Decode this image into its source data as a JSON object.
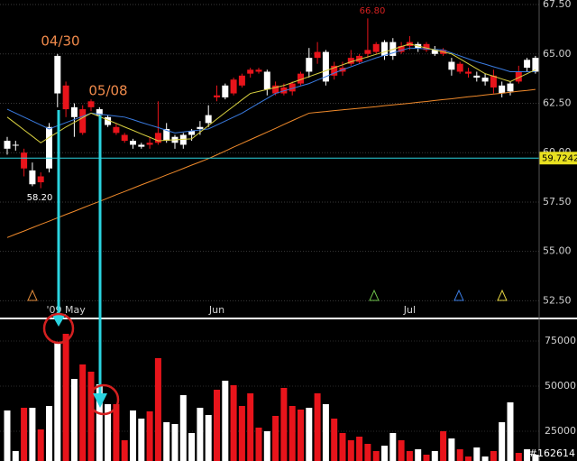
{
  "chart_data": [
    {
      "type": "candlestick",
      "categories": [
        null,
        null,
        null,
        null,
        null,
        null,
        null,
        "'09 May",
        null,
        null,
        null,
        null,
        null,
        null,
        null,
        null,
        null,
        null,
        null,
        null,
        null,
        null,
        null,
        null,
        null,
        "Jun",
        null,
        null,
        null,
        null,
        null,
        null,
        null,
        null,
        null,
        null,
        null,
        null,
        null,
        null,
        null,
        null,
        null,
        null,
        null,
        null,
        null,
        null,
        "Jul",
        null,
        null,
        null,
        null,
        null,
        null,
        null,
        null,
        null,
        null,
        null,
        null,
        null,
        null,
        null
      ],
      "open": [
        60.2,
        60.4,
        60.0,
        58.4,
        58.8,
        59.2,
        63.0,
        63.4,
        61.8,
        62.2,
        62.6,
        61.9,
        61.4,
        61.3,
        60.9,
        60.4,
        60.3,
        60.5,
        61.0,
        60.6,
        60.5,
        60.4,
        60.9,
        61.2,
        61.5,
        62.9,
        62.8,
        63.7,
        63.9,
        64.2,
        64.2,
        63.2,
        63.4,
        63.3,
        63.5,
        64.0,
        64.1,
        65.1,
        63.6,
        64.4,
        64.3,
        64.8,
        64.9,
        65.2,
        65.5,
        64.9,
        64.9,
        65.4,
        65.6,
        65.3,
        65.5,
        65.0,
        65.2,
        64.2,
        64.5,
        64.1,
        63.8,
        63.6,
        63.9,
        63.0,
        63.1,
        64.1,
        64.3,
        64.1
      ],
      "high": [
        60.8,
        60.6,
        60.2,
        59.5,
        59.0,
        61.5,
        65.0,
        63.6,
        62.5,
        62.4,
        62.7,
        62.3,
        61.9,
        61.5,
        61.0,
        60.7,
        60.5,
        60.8,
        62.6,
        61.5,
        60.9,
        61.0,
        61.2,
        61.6,
        62.4,
        63.4,
        63.5,
        63.8,
        64.0,
        64.3,
        64.3,
        64.2,
        63.6,
        63.5,
        63.6,
        64.1,
        65.3,
        65.6,
        65.2,
        64.6,
        64.6,
        65.2,
        65.0,
        66.8,
        65.6,
        65.7,
        65.8,
        65.6,
        65.9,
        65.6,
        65.6,
        65.4,
        65.3,
        64.8,
        64.6,
        64.3,
        64.1,
        64.0,
        64.2,
        63.6,
        63.6,
        64.4,
        64.8,
        64.9
      ],
      "low": [
        59.9,
        60.1,
        58.8,
        58.3,
        58.2,
        59.0,
        62.3,
        61.8,
        60.8,
        60.9,
        62.1,
        61.7,
        61.3,
        60.9,
        60.5,
        60.2,
        60.2,
        60.2,
        60.4,
        60.5,
        60.2,
        60.2,
        60.6,
        60.9,
        61.3,
        62.6,
        62.7,
        62.9,
        63.3,
        63.8,
        64.0,
        62.9,
        62.9,
        62.9,
        62.9,
        63.4,
        63.8,
        64.5,
        63.4,
        63.7,
        63.9,
        64.4,
        64.5,
        64.8,
        65.0,
        64.7,
        64.7,
        65.0,
        65.2,
        65.1,
        65.1,
        64.9,
        64.9,
        63.9,
        64.0,
        63.8,
        63.6,
        63.4,
        63.0,
        62.8,
        62.9,
        63.5,
        64.1,
        64.0
      ],
      "close": [
        60.6,
        60.4,
        59.2,
        59.1,
        58.5,
        61.3,
        64.9,
        62.2,
        62.3,
        61.0,
        62.3,
        62.2,
        61.8,
        61.0,
        60.6,
        60.6,
        60.4,
        60.4,
        60.5,
        61.2,
        60.8,
        60.9,
        61.1,
        61.3,
        61.9,
        62.8,
        63.4,
        63.0,
        63.4,
        64.0,
        64.1,
        64.1,
        63.0,
        63.0,
        63.1,
        63.5,
        64.8,
        64.8,
        65.1,
        63.9,
        64.1,
        64.5,
        64.6,
        65.0,
        65.1,
        65.6,
        65.6,
        65.1,
        65.4,
        65.5,
        65.2,
        65.2,
        65.0,
        64.6,
        64.1,
        64.0,
        63.9,
        63.8,
        63.3,
        63.4,
        63.5,
        63.6,
        64.7,
        64.8
      ],
      "up_color": "#ffffff",
      "down_color": "#e8141b",
      "series": [
        {
          "color": "#f08a2b",
          "values": [
            55.7,
            55.87,
            56.03,
            56.2,
            56.37,
            56.53,
            56.7,
            56.87,
            57.03,
            57.2,
            57.37,
            57.53,
            57.7,
            57.87,
            58.03,
            58.2,
            58.37,
            58.53,
            58.7,
            58.87,
            59.03,
            59.2,
            59.37,
            59.53,
            59.7,
            59.89,
            60.08,
            60.28,
            60.47,
            60.66,
            60.85,
            61.04,
            61.23,
            61.43,
            61.62,
            61.81,
            62.0,
            62.04,
            62.08,
            62.13,
            62.17,
            62.21,
            62.25,
            62.29,
            62.33,
            62.38,
            62.42,
            62.46,
            62.5,
            62.55,
            62.59,
            62.64,
            62.69,
            62.73,
            62.78,
            62.83,
            62.87,
            62.92,
            62.97,
            63.01,
            63.06,
            63.11,
            63.15,
            63.2
          ]
        },
        {
          "color": "#3a7be0",
          "values": [
            62.2,
            62.0,
            61.8,
            61.6,
            61.4,
            61.2,
            61.36,
            61.52,
            61.68,
            61.84,
            62.0,
            61.95,
            61.9,
            61.85,
            61.8,
            61.67,
            61.53,
            61.4,
            61.27,
            61.13,
            61.0,
            61.05,
            61.1,
            61.15,
            61.2,
            61.4,
            61.6,
            61.8,
            62.0,
            62.25,
            62.5,
            62.75,
            63.0,
            63.13,
            63.25,
            63.38,
            63.5,
            63.68,
            63.85,
            64.03,
            64.2,
            64.35,
            64.5,
            64.65,
            64.8,
            64.93,
            65.05,
            65.18,
            65.3,
            65.28,
            65.25,
            65.23,
            65.2,
            65.05,
            64.9,
            64.75,
            64.6,
            64.48,
            64.35,
            64.23,
            64.1,
            64.1,
            64.1,
            64.1
          ]
        },
        {
          "color": "#d8d040",
          "values": [
            61.8,
            61.48,
            61.15,
            60.83,
            60.5,
            60.77,
            61.03,
            61.3,
            61.53,
            61.77,
            62.0,
            61.83,
            61.65,
            61.48,
            61.3,
            61.13,
            60.95,
            60.78,
            60.6,
            60.63,
            60.65,
            60.68,
            60.7,
            61.03,
            61.37,
            61.7,
            62.03,
            62.35,
            62.68,
            63.0,
            63.1,
            63.2,
            63.3,
            63.4,
            63.55,
            63.7,
            63.85,
            64.0,
            64.15,
            64.3,
            64.45,
            64.6,
            64.73,
            64.85,
            64.98,
            65.1,
            65.23,
            65.37,
            65.5,
            65.4,
            65.3,
            65.2,
            65.1,
            65.0,
            64.75,
            64.5,
            64.25,
            64.0,
            63.87,
            63.73,
            63.6,
            63.8,
            64.0,
            64.2
          ]
        }
      ],
      "last_price": 59.7242,
      "annotations": [
        "04/30",
        "05/08",
        "58.20",
        "66.80"
      ],
      "ylim": [
        51.65,
        67.73
      ],
      "yticks": [
        {
          "value": 52.5,
          "label": "52.50"
        },
        {
          "value": 55,
          "label": "55.00"
        },
        {
          "value": 57.5,
          "label": "57.50"
        },
        {
          "value": 60,
          "label": "60.00"
        },
        {
          "value": 62.5,
          "label": "62.50"
        },
        {
          "value": 65,
          "label": "65.00"
        },
        {
          "value": 67.5,
          "label": "67.50"
        }
      ],
      "grid": true
    },
    {
      "type": "bar",
      "values": [
        36500,
        14000,
        38000,
        38000,
        26000,
        39000,
        74000,
        79000,
        54000,
        62000,
        58000,
        51000,
        40000,
        40000,
        20000,
        36500,
        32000,
        36000,
        65500,
        30000,
        29000,
        45000,
        24000,
        38000,
        34000,
        48000,
        53000,
        50500,
        39000,
        46000,
        27000,
        25000,
        33500,
        49000,
        39000,
        37000,
        38000,
        46000,
        40000,
        32000,
        24000,
        20000,
        22000,
        18000,
        14000,
        17000,
        24000,
        20000,
        14000,
        15000,
        12000,
        14000,
        25000,
        21000,
        15000,
        11000,
        16000,
        11000,
        14000,
        30000,
        41000,
        13000,
        15000,
        12000
      ],
      "ylim": [
        8500,
        86500
      ],
      "yticks": [
        25000,
        50000,
        75000
      ],
      "id_label": "#162614"
    }
  ]
}
